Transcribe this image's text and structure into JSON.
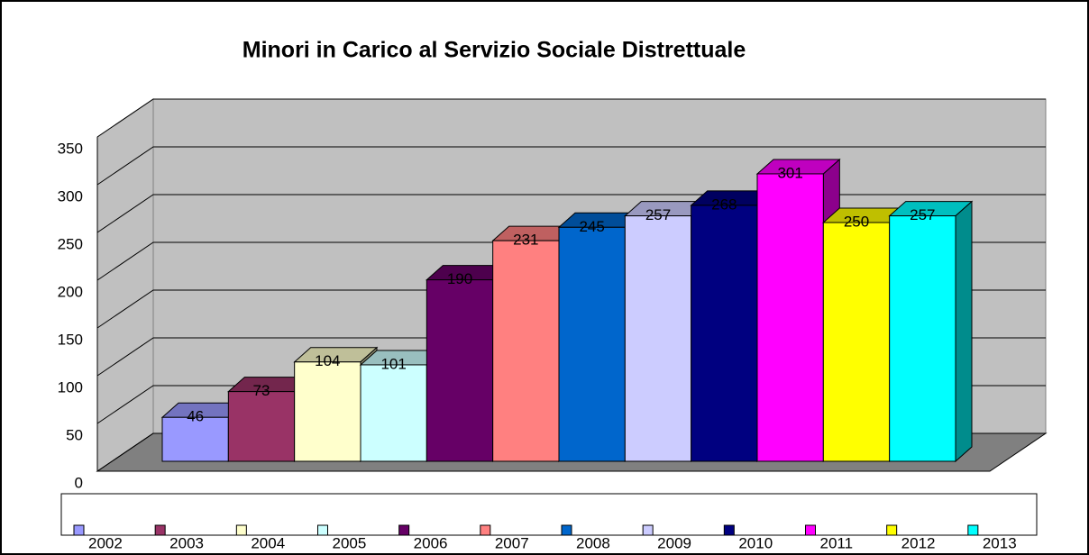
{
  "chart_data": {
    "type": "bar",
    "title": "Minori in Carico al Servizio Sociale Distrettuale",
    "ylim": [
      0,
      350
    ],
    "yticks": [
      0,
      50,
      100,
      150,
      200,
      250,
      300,
      350
    ],
    "grid": true,
    "legend": "bottom",
    "series": [
      {
        "name": "2002",
        "color": "#9999ff",
        "values": [
          46
        ]
      },
      {
        "name": "2003",
        "color": "#993366",
        "values": [
          73
        ]
      },
      {
        "name": "2004",
        "color": "#ffffcc",
        "values": [
          104
        ]
      },
      {
        "name": "2005",
        "color": "#ccffff",
        "values": [
          101
        ]
      },
      {
        "name": "2006",
        "color": "#660066",
        "values": [
          190
        ]
      },
      {
        "name": "2007",
        "color": "#ff8080",
        "values": [
          231
        ]
      },
      {
        "name": "2008",
        "color": "#0066cc",
        "values": [
          245
        ]
      },
      {
        "name": "2009",
        "color": "#ccccff",
        "values": [
          257
        ]
      },
      {
        "name": "2010",
        "color": "#000080",
        "values": [
          268
        ]
      },
      {
        "name": "2011",
        "color": "#ff00ff",
        "values": [
          301
        ]
      },
      {
        "name": "2012",
        "color": "#ffff00",
        "values": [
          250
        ]
      },
      {
        "name": "2013",
        "color": "#00ffff",
        "values": [
          257
        ]
      }
    ]
  }
}
